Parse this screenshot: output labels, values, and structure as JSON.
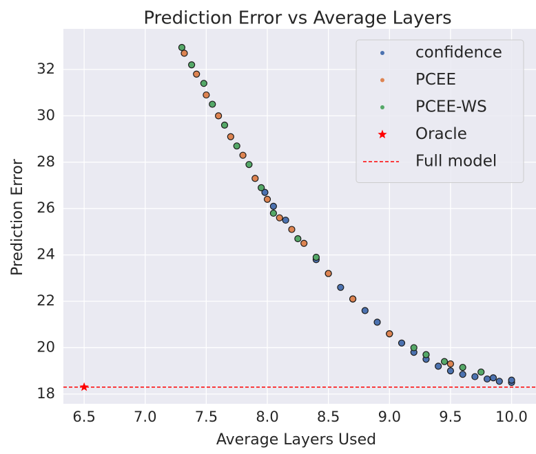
{
  "chart_data": {
    "type": "scatter",
    "title": "Prediction Error vs Average Layers",
    "x_label": "Average Layers Used",
    "y_label": "Prediction Error",
    "xlim": [
      6.33,
      10.2
    ],
    "ylim": [
      17.58,
      33.75
    ],
    "xticks": [
      6.5,
      {
        "value": 7,
        "label": "7.0"
      },
      7.5,
      {
        "value": 8,
        "label": "8.0"
      },
      8.5,
      {
        "value": 9,
        "label": "9.0"
      },
      9.5,
      {
        "value": 10,
        "label": "10.0"
      }
    ],
    "yticks": [
      18,
      20,
      22,
      24,
      26,
      28,
      30,
      32
    ],
    "grid": true,
    "legend": "upper right",
    "series": [
      {
        "name": "confidence",
        "color": "#4c72b0",
        "x": [
          7.98,
          8.05,
          8.15,
          8.4,
          8.5,
          8.6,
          8.7,
          8.8,
          8.9,
          9.0,
          9.1,
          9.2,
          9.3,
          9.4,
          9.5,
          9.6,
          9.7,
          9.8,
          9.85,
          9.9,
          10.0,
          10.0
        ],
        "values": [
          26.7,
          26.1,
          25.5,
          23.8,
          23.2,
          22.6,
          22.1,
          21.6,
          21.1,
          20.6,
          20.2,
          19.8,
          19.5,
          19.2,
          19.0,
          18.85,
          18.75,
          18.65,
          18.7,
          18.55,
          18.5,
          18.6
        ]
      },
      {
        "name": "PCEE",
        "color": "#dd8452",
        "x": [
          7.32,
          7.42,
          7.5,
          7.6,
          7.7,
          7.8,
          7.9,
          8.0,
          8.1,
          8.2,
          8.3,
          8.5,
          8.7,
          9.0,
          9.3,
          9.5
        ],
        "values": [
          32.7,
          31.8,
          30.9,
          30.0,
          29.1,
          28.3,
          27.3,
          26.4,
          25.6,
          25.1,
          24.5,
          23.2,
          22.1,
          20.6,
          19.7,
          19.3
        ]
      },
      {
        "name": "PCEE-WS",
        "color": "#55a868",
        "x": [
          7.3,
          7.38,
          7.48,
          7.55,
          7.65,
          7.75,
          7.85,
          7.95,
          8.05,
          8.25,
          8.4,
          9.2,
          9.3,
          9.45,
          9.6,
          9.75
        ],
        "values": [
          32.95,
          32.2,
          31.4,
          30.5,
          29.6,
          28.7,
          27.9,
          26.9,
          25.8,
          24.7,
          23.9,
          20.0,
          19.7,
          19.4,
          19.15,
          18.95
        ]
      },
      {
        "name": "Oracle",
        "color": "#ff0000",
        "marker": "star",
        "x": [
          6.5
        ],
        "values": [
          18.3
        ]
      }
    ],
    "reference_lines": [
      {
        "name": "Full model",
        "color": "#ff0000",
        "value": 18.3,
        "style": "dashed"
      }
    ]
  }
}
